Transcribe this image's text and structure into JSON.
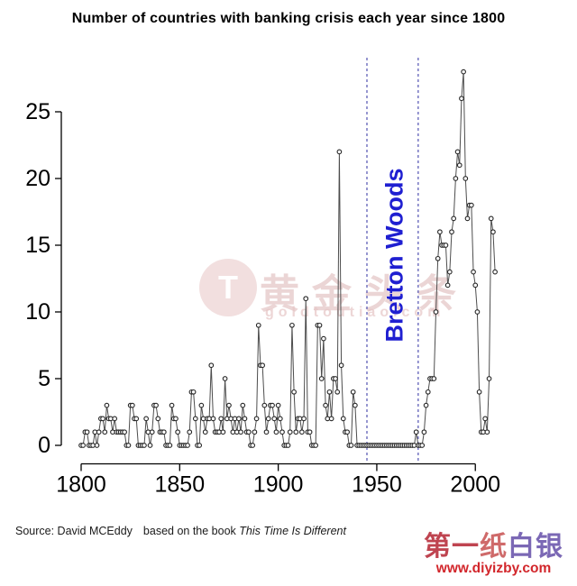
{
  "title": "Number of countries with banking crisis each year since 1800",
  "chart_data": {
    "type": "line",
    "title": "Number of countries with banking crisis each year since 1800",
    "x_start_year": 1800,
    "x_end_year": 2010,
    "values": [
      0,
      0,
      1,
      1,
      0,
      0,
      0,
      1,
      0,
      1,
      2,
      2,
      1,
      3,
      2,
      2,
      1,
      2,
      1,
      1,
      1,
      1,
      1,
      0,
      0,
      3,
      3,
      2,
      2,
      0,
      0,
      0,
      0,
      2,
      1,
      0,
      1,
      3,
      3,
      2,
      1,
      1,
      1,
      0,
      0,
      0,
      3,
      2,
      2,
      1,
      0,
      0,
      0,
      0,
      0,
      1,
      4,
      4,
      2,
      0,
      0,
      3,
      2,
      1,
      2,
      2,
      6,
      2,
      1,
      1,
      1,
      2,
      1,
      5,
      2,
      3,
      2,
      1,
      2,
      1,
      2,
      1,
      3,
      2,
      1,
      1,
      0,
      0,
      1,
      2,
      9,
      6,
      6,
      3,
      1,
      2,
      3,
      3,
      2,
      1,
      3,
      2,
      1,
      0,
      0,
      0,
      1,
      9,
      4,
      1,
      2,
      2,
      1,
      2,
      11,
      1,
      1,
      0,
      0,
      0,
      9,
      9,
      5,
      8,
      3,
      2,
      4,
      2,
      5,
      5,
      4,
      22,
      6,
      2,
      1,
      1,
      0,
      0,
      4,
      3,
      0,
      0,
      0,
      0,
      0,
      0,
      0,
      0,
      0,
      0,
      0,
      0,
      0,
      0,
      0,
      0,
      0,
      0,
      0,
      0,
      0,
      0,
      0,
      0,
      0,
      0,
      0,
      0,
      0,
      0,
      1,
      0,
      0,
      0,
      1,
      3,
      4,
      5,
      5,
      5,
      10,
      14,
      16,
      15,
      15,
      15,
      12,
      13,
      16,
      17,
      20,
      22,
      21,
      26,
      28,
      20,
      17,
      18,
      18,
      13,
      12,
      10,
      4,
      1,
      1,
      2,
      1,
      5,
      17,
      16,
      13
    ],
    "xticks": [
      "1800",
      "1850",
      "1900",
      "1950",
      "2000"
    ],
    "yticks": [
      "0",
      "5",
      "10",
      "15",
      "20",
      "25"
    ],
    "ylim": [
      0,
      28
    ],
    "grid": false,
    "legend": "none",
    "annotation": {
      "label": "Bretton Woods",
      "start_year": 1945,
      "end_year": 1971,
      "label_color": "#1f1fd1",
      "line_color": "#6b6bbd"
    },
    "line_color": "#4d4d4d",
    "point_style": "open-circle"
  },
  "watermark": {
    "logo_letter": "T",
    "text": "黄金头条",
    "subtext": "goldtoutiao.com"
  },
  "footer": {
    "source_label": "Source: David MCEddy",
    "based_text": "based on the book",
    "book_title": "This Time Is Different"
  },
  "brand": {
    "name_part1": "第一",
    "name_part2": "纸",
    "name_part3": "白银",
    "url": "www.diyizby.com"
  }
}
